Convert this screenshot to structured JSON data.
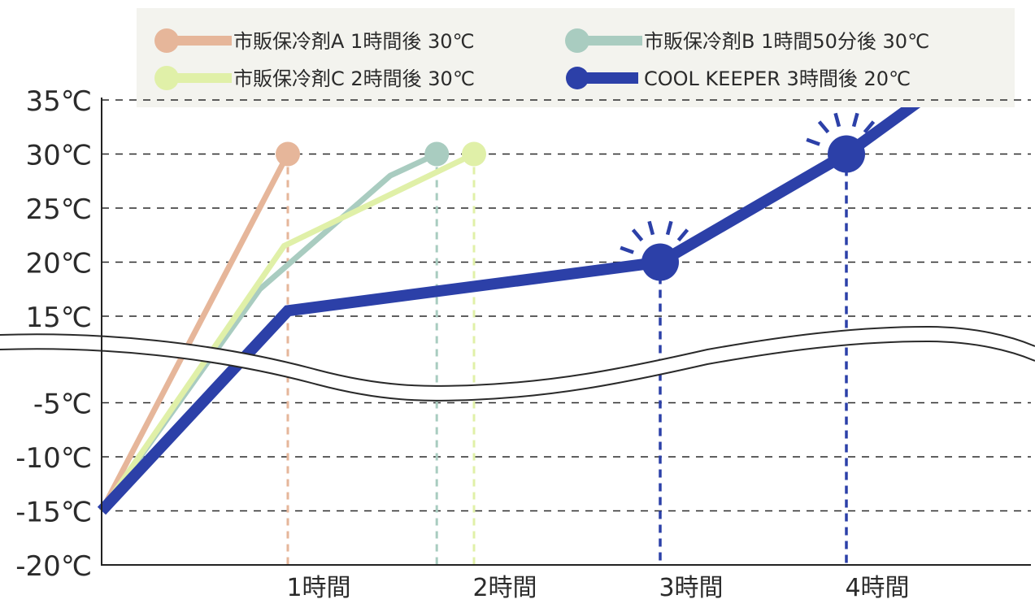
{
  "chart_data": {
    "type": "line",
    "title": "",
    "xlabel": "",
    "ylabel": "",
    "axis_break": "between 15℃ and -5℃",
    "grid": true,
    "legend_position": "top",
    "xlim": [
      0,
      4.8
    ],
    "x_ticks": [
      {
        "value": 1,
        "label": "1時間"
      },
      {
        "value": 2,
        "label": "2時間"
      },
      {
        "value": 3,
        "label": "3時間"
      },
      {
        "value": 4,
        "label": "4時間"
      }
    ],
    "y_ticks": [
      {
        "value": 35,
        "label": "35℃"
      },
      {
        "value": 30,
        "label": "30℃"
      },
      {
        "value": 25,
        "label": "25℃"
      },
      {
        "value": 20,
        "label": "20℃"
      },
      {
        "value": 15,
        "label": "15℃"
      },
      {
        "value": -5,
        "label": "-5℃"
      },
      {
        "value": -10,
        "label": "-10℃"
      },
      {
        "value": -15,
        "label": "-15℃"
      },
      {
        "value": -20,
        "label": "-20℃"
      }
    ],
    "series": [
      {
        "name": "市販保冷剤A 1時間後 30℃",
        "color": "#E6B69A",
        "points": [
          [
            0,
            -15
          ],
          [
            1,
            30
          ]
        ],
        "end_marker": [
          1,
          30
        ]
      },
      {
        "name": "市販保冷剤B 1時間50分後 30℃",
        "color": "#A9CCC0",
        "points": [
          [
            0,
            -15
          ],
          [
            0.85,
            17.5
          ],
          [
            1.55,
            28
          ],
          [
            1.8,
            30
          ]
        ],
        "end_marker": [
          1.8,
          30
        ]
      },
      {
        "name": "市販保冷剤C 2時間後 30℃",
        "color": "#E0F0A8",
        "points": [
          [
            0,
            -15
          ],
          [
            0.98,
            21.5
          ],
          [
            2,
            30
          ]
        ],
        "end_marker": [
          2,
          30
        ]
      },
      {
        "name": "COOL KEEPER 3時間後 20℃",
        "color": "#2C40A8",
        "points": [
          [
            0,
            -15
          ],
          [
            1,
            15.5
          ],
          [
            3,
            20
          ],
          [
            4,
            30
          ],
          [
            4.4,
            35
          ]
        ],
        "markers": [
          [
            3,
            20
          ],
          [
            4,
            30
          ]
        ]
      }
    ]
  }
}
